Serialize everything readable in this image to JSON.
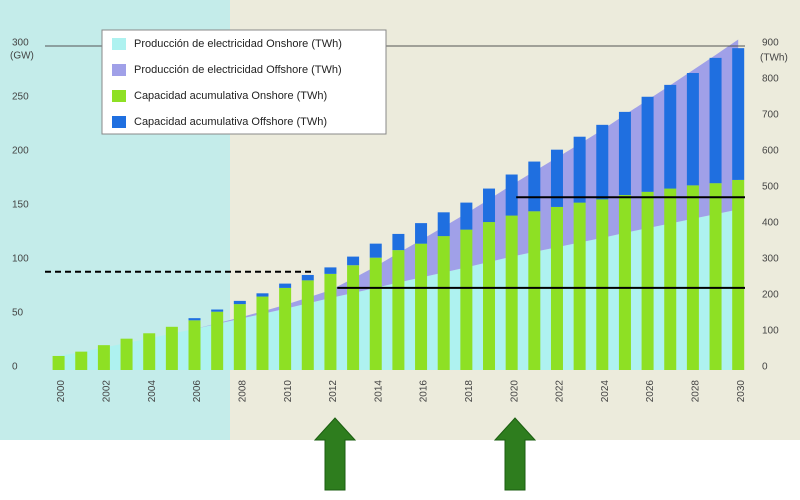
{
  "chart_data": {
    "type": "bar",
    "stacked": true,
    "ylabel": "(GW)",
    "y2label": "(TWh)",
    "x": [
      2000,
      2001,
      2002,
      2003,
      2004,
      2005,
      2006,
      2007,
      2008,
      2009,
      2010,
      2011,
      2012,
      2013,
      2014,
      2015,
      2016,
      2017,
      2018,
      2019,
      2020,
      2021,
      2022,
      2023,
      2024,
      2025,
      2026,
      2027,
      2028,
      2029,
      2030
    ],
    "xlim": [
      1999.4,
      2030.3
    ],
    "xticks": [
      2000,
      2002,
      2004,
      2006,
      2008,
      2010,
      2012,
      2014,
      2016,
      2018,
      2020,
      2022,
      2024,
      2026,
      2028,
      2030
    ],
    "ylim": [
      0,
      300
    ],
    "yticks": [
      0,
      50,
      100,
      150,
      200,
      250,
      300
    ],
    "y2lim": [
      0,
      900
    ],
    "y2ticks": [
      0,
      100,
      200,
      300,
      400,
      500,
      600,
      700,
      800,
      900
    ],
    "series": [
      {
        "name": "Producción de electricidad Onshore (TWh)",
        "type": "area",
        "axis": "y2",
        "color": "#aef2f0",
        "values": [
          39,
          50,
          62,
          75,
          88,
          101,
          114,
          128,
          142,
          156,
          170,
          185,
          200,
          214,
          228,
          243,
          257,
          271,
          285,
          300,
          315,
          328,
          341,
          354,
          367,
          381,
          394,
          407,
          420,
          433,
          446
        ]
      },
      {
        "name": "Producción de electricidad Offshore (TWh)",
        "type": "area",
        "axis": "y2",
        "color": "#a0a0e8",
        "values": [
          0,
          0,
          0,
          0,
          0,
          0,
          0,
          2,
          4,
          7,
          11,
          16,
          22,
          40,
          60,
          82,
          104,
          127,
          150,
          174,
          199,
          224,
          249,
          274,
          300,
          328,
          356,
          384,
          413,
          442,
          472
        ]
      },
      {
        "name": "Capacidad acumulativa Onshore (TWh)",
        "type": "bar",
        "color": "#8ee024",
        "values": [
          13,
          17,
          23,
          29,
          34,
          40,
          46,
          54,
          61,
          68,
          76,
          83,
          89,
          97,
          104,
          111,
          117,
          124,
          130,
          137,
          143,
          147,
          151,
          155,
          158,
          162,
          165,
          168,
          171,
          173,
          176
        ]
      },
      {
        "name": "Capacidad acumulativa Offshore (TWh)",
        "type": "bar",
        "color": "#1f6fe0",
        "values": [
          0,
          0,
          0,
          0,
          0,
          0,
          2,
          2,
          3,
          3,
          4,
          5,
          6,
          8,
          13,
          15,
          19,
          22,
          25,
          31,
          38,
          46,
          53,
          61,
          69,
          77,
          88,
          96,
          104,
          116,
          122
        ]
      }
    ],
    "hlines": [
      {
        "y": 91,
        "from": 1999.4,
        "to": 2011.2,
        "dashed": true
      },
      {
        "y": 76,
        "from": 2012.3,
        "to": 2030.3,
        "dashed": false
      },
      {
        "y": 160,
        "from": 2020.2,
        "to": 2030.3,
        "dashed": false
      }
    ]
  }
}
